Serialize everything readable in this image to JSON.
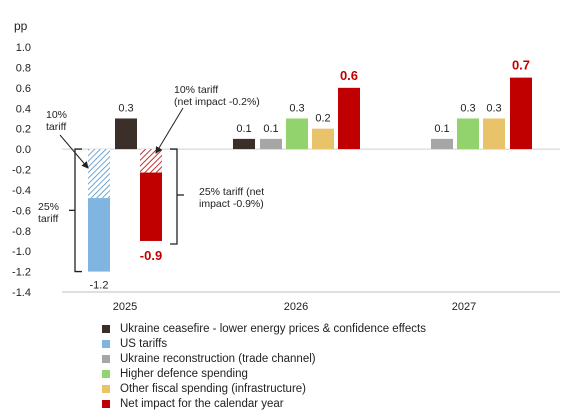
{
  "chart_data": {
    "type": "bar",
    "ylabel": "pp",
    "ylim": [
      -1.4,
      1.0
    ],
    "yticks": [
      "1.0",
      "0.8",
      "0.6",
      "0.4",
      "0.2",
      "0.0",
      "-0.2",
      "-0.4",
      "-0.6",
      "-0.8",
      "-1.0",
      "-1.2",
      "-1.4"
    ],
    "categories": [
      "2025",
      "2026",
      "2027"
    ],
    "series": [
      {
        "name": "Ukraine ceasefire - lower energy prices & confidence effects",
        "color": "#3b2f29",
        "values": [
          0.3,
          0.1,
          null
        ]
      },
      {
        "name": "US tariffs",
        "color": "#7fb5e0",
        "values": [
          -1.2,
          null,
          null
        ]
      },
      {
        "name": "Ukraine reconstruction (trade channel)",
        "color": "#a6a6a6",
        "values": [
          null,
          0.1,
          0.1
        ]
      },
      {
        "name": "Higher defence spending",
        "color": "#92d36e",
        "values": [
          null,
          0.3,
          0.3
        ]
      },
      {
        "name": "Other fiscal spending (infrastructure)",
        "color": "#e8c36a",
        "values": [
          null,
          0.2,
          0.3
        ]
      },
      {
        "name": "Net impact for the calendar year",
        "color": "#c00000",
        "values": [
          -0.9,
          0.6,
          0.7
        ]
      }
    ],
    "data_labels": {
      "2025": [
        "-1.2",
        "0.3",
        "-0.9"
      ],
      "2026": [
        "0.1",
        "0.1",
        "0.3",
        "0.2",
        "0.6"
      ],
      "2027": [
        "0.1",
        "0.3",
        "0.3",
        "0.7"
      ]
    },
    "annotations": {
      "us_10pct": "10%\ntariff",
      "us_25pct": "25%\ntariff",
      "us_10pct_split": -0.48,
      "net_10pct": "10% tariff\n(net impact -0.2%)",
      "net_25pct": "25% tariff (net\nimpact -0.9%)",
      "net_10pct_split": -0.23
    }
  }
}
